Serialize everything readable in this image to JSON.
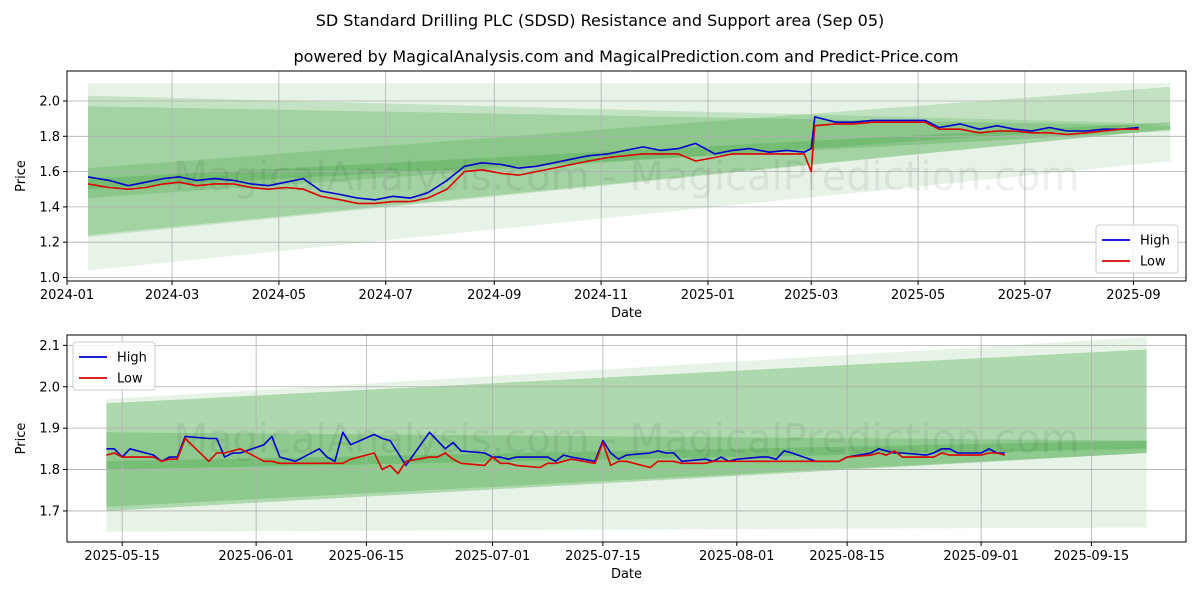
{
  "figure": {
    "title": "SD Standard Drilling PLC (SDSD) Resistance and Support area (Sep 05)",
    "subtitle": "powered by MagicalAnalysis.com and MagicalPrediction.com and Predict-Price.com",
    "watermark": "MagicalAnalysis.com - MagicalPrediction.com",
    "colors": {
      "high": "#0000cc",
      "low": "#dd0000",
      "band": "#2e9a2e",
      "grid": "#b0b0b0"
    }
  },
  "chart_data": [
    {
      "type": "line",
      "xlabel": "Date",
      "ylabel": "Price",
      "xlim": [
        "2024-01-01",
        "2025-10-01"
      ],
      "ylim": [
        0.98,
        2.17
      ],
      "xticks": [
        "2024-01",
        "2024-03",
        "2024-05",
        "2024-07",
        "2024-09",
        "2024-11",
        "2025-01",
        "2025-03",
        "2025-05",
        "2025-07",
        "2025-09"
      ],
      "yticks": [
        1.0,
        1.2,
        1.4,
        1.6,
        1.8,
        2.0
      ],
      "grid": true,
      "legend": "bottom-right",
      "series": [
        {
          "name": "High",
          "x": [
            "2024-01-13",
            "2024-01-25",
            "2024-02-05",
            "2024-02-15",
            "2024-02-25",
            "2024-03-05",
            "2024-03-15",
            "2024-03-25",
            "2024-04-05",
            "2024-04-15",
            "2024-04-25",
            "2024-05-05",
            "2024-05-15",
            "2024-05-25",
            "2024-06-05",
            "2024-06-15",
            "2024-06-25",
            "2024-07-05",
            "2024-07-15",
            "2024-07-25",
            "2024-08-05",
            "2024-08-15",
            "2024-08-25",
            "2024-09-05",
            "2024-09-15",
            "2024-09-25",
            "2024-10-05",
            "2024-10-15",
            "2024-10-25",
            "2024-11-05",
            "2024-11-15",
            "2024-11-25",
            "2024-12-05",
            "2024-12-15",
            "2024-12-25",
            "2025-01-05",
            "2025-01-15",
            "2025-01-25",
            "2025-02-05",
            "2025-02-15",
            "2025-02-25",
            "2025-03-01",
            "2025-03-03",
            "2025-03-15",
            "2025-03-25",
            "2025-04-05",
            "2025-04-15",
            "2025-04-25",
            "2025-05-05",
            "2025-05-13",
            "2025-05-25",
            "2025-06-05",
            "2025-06-15",
            "2025-06-25",
            "2025-07-05",
            "2025-07-15",
            "2025-07-25",
            "2025-08-05",
            "2025-08-15",
            "2025-08-25",
            "2025-09-04"
          ],
          "values": [
            1.57,
            1.55,
            1.52,
            1.54,
            1.56,
            1.57,
            1.55,
            1.56,
            1.55,
            1.53,
            1.52,
            1.54,
            1.56,
            1.49,
            1.47,
            1.45,
            1.44,
            1.46,
            1.45,
            1.48,
            1.55,
            1.63,
            1.65,
            1.64,
            1.62,
            1.63,
            1.65,
            1.67,
            1.69,
            1.7,
            1.72,
            1.74,
            1.72,
            1.73,
            1.76,
            1.7,
            1.72,
            1.73,
            1.71,
            1.72,
            1.71,
            1.73,
            1.91,
            1.88,
            1.88,
            1.89,
            1.89,
            1.89,
            1.89,
            1.85,
            1.87,
            1.84,
            1.86,
            1.84,
            1.83,
            1.85,
            1.83,
            1.83,
            1.84,
            1.84,
            1.85
          ]
        },
        {
          "name": "Low",
          "x": [
            "2024-01-13",
            "2024-01-25",
            "2024-02-05",
            "2024-02-15",
            "2024-02-25",
            "2024-03-05",
            "2024-03-15",
            "2024-03-25",
            "2024-04-05",
            "2024-04-15",
            "2024-04-25",
            "2024-05-05",
            "2024-05-15",
            "2024-05-25",
            "2024-06-05",
            "2024-06-15",
            "2024-06-25",
            "2024-07-05",
            "2024-07-15",
            "2024-07-25",
            "2024-08-05",
            "2024-08-15",
            "2024-08-25",
            "2024-09-05",
            "2024-09-15",
            "2024-09-25",
            "2024-10-05",
            "2024-10-15",
            "2024-10-25",
            "2024-11-05",
            "2024-11-15",
            "2024-11-25",
            "2024-12-05",
            "2024-12-15",
            "2024-12-25",
            "2025-01-05",
            "2025-01-15",
            "2025-01-25",
            "2025-02-05",
            "2025-02-15",
            "2025-02-25",
            "2025-03-01",
            "2025-03-03",
            "2025-03-15",
            "2025-03-25",
            "2025-04-05",
            "2025-04-15",
            "2025-04-25",
            "2025-05-05",
            "2025-05-13",
            "2025-05-25",
            "2025-06-05",
            "2025-06-15",
            "2025-06-25",
            "2025-07-05",
            "2025-07-15",
            "2025-07-25",
            "2025-08-05",
            "2025-08-15",
            "2025-08-25",
            "2025-09-04"
          ],
          "values": [
            1.53,
            1.51,
            1.5,
            1.51,
            1.53,
            1.54,
            1.52,
            1.53,
            1.53,
            1.51,
            1.5,
            1.51,
            1.5,
            1.46,
            1.44,
            1.42,
            1.42,
            1.43,
            1.43,
            1.45,
            1.5,
            1.6,
            1.61,
            1.59,
            1.58,
            1.6,
            1.62,
            1.64,
            1.66,
            1.68,
            1.69,
            1.7,
            1.7,
            1.7,
            1.66,
            1.68,
            1.7,
            1.7,
            1.7,
            1.7,
            1.7,
            1.6,
            1.86,
            1.87,
            1.87,
            1.88,
            1.88,
            1.88,
            1.88,
            1.84,
            1.84,
            1.82,
            1.83,
            1.83,
            1.82,
            1.82,
            1.81,
            1.82,
            1.83,
            1.84,
            1.84
          ]
        }
      ],
      "bands": [
        {
          "x": [
            "2024-01-13",
            "2025-09-22"
          ],
          "upper": [
            2.1,
            2.1
          ],
          "lower": [
            1.04,
            1.66
          ],
          "opacity": 0.12
        },
        {
          "x": [
            "2024-01-13",
            "2025-09-22"
          ],
          "upper": [
            2.03,
            1.87
          ],
          "lower": [
            1.23,
            1.84
          ],
          "opacity": 0.18
        },
        {
          "x": [
            "2024-01-13",
            "2025-09-22"
          ],
          "upper": [
            1.97,
            1.86
          ],
          "lower": [
            1.24,
            1.84
          ],
          "opacity": 0.22
        },
        {
          "x": [
            "2024-01-13",
            "2025-09-22"
          ],
          "upper": [
            1.62,
            2.08
          ],
          "lower": [
            1.45,
            1.87
          ],
          "opacity": 0.2
        },
        {
          "x": [
            "2024-01-13",
            "2025-09-22"
          ],
          "upper": [
            1.56,
            1.88
          ],
          "lower": [
            1.5,
            1.83
          ],
          "opacity": 0.25
        }
      ]
    },
    {
      "type": "line",
      "xlabel": "Date",
      "ylabel": "Price",
      "xlim": [
        "2025-05-08",
        "2025-09-27"
      ],
      "ylim": [
        1.625,
        2.125
      ],
      "xticks": [
        "2025-05-15",
        "2025-06-01",
        "2025-06-15",
        "2025-07-01",
        "2025-07-15",
        "2025-08-01",
        "2025-08-15",
        "2025-09-01",
        "2025-09-15"
      ],
      "yticks": [
        1.7,
        1.8,
        1.9,
        2.0,
        2.1
      ],
      "grid": true,
      "legend": "top-left",
      "series": [
        {
          "name": "High",
          "x": [
            "2025-05-13",
            "2025-05-14",
            "2025-05-15",
            "2025-05-16",
            "2025-05-19",
            "2025-05-20",
            "2025-05-21",
            "2025-05-22",
            "2025-05-23",
            "2025-05-26",
            "2025-05-27",
            "2025-05-28",
            "2025-05-29",
            "2025-05-30",
            "2025-06-02",
            "2025-06-03",
            "2025-06-04",
            "2025-06-05",
            "2025-06-06",
            "2025-06-09",
            "2025-06-10",
            "2025-06-11",
            "2025-06-12",
            "2025-06-13",
            "2025-06-16",
            "2025-06-17",
            "2025-06-18",
            "2025-06-19",
            "2025-06-20",
            "2025-06-23",
            "2025-06-24",
            "2025-06-25",
            "2025-06-26",
            "2025-06-27",
            "2025-06-30",
            "2025-07-01",
            "2025-07-02",
            "2025-07-03",
            "2025-07-04",
            "2025-07-07",
            "2025-07-08",
            "2025-07-09",
            "2025-07-10",
            "2025-07-11",
            "2025-07-14",
            "2025-07-15",
            "2025-07-16",
            "2025-07-17",
            "2025-07-18",
            "2025-07-21",
            "2025-07-22",
            "2025-07-23",
            "2025-07-24",
            "2025-07-25",
            "2025-07-28",
            "2025-07-29",
            "2025-07-30",
            "2025-07-31",
            "2025-08-01",
            "2025-08-04",
            "2025-08-05",
            "2025-08-06",
            "2025-08-07",
            "2025-08-08",
            "2025-08-11",
            "2025-08-12",
            "2025-08-13",
            "2025-08-14",
            "2025-08-15",
            "2025-08-18",
            "2025-08-19",
            "2025-08-20",
            "2025-08-21",
            "2025-08-22",
            "2025-08-25",
            "2025-08-26",
            "2025-08-27",
            "2025-08-28",
            "2025-08-29",
            "2025-09-01",
            "2025-09-02",
            "2025-09-03",
            "2025-09-04"
          ],
          "values": [
            1.85,
            1.85,
            1.83,
            1.85,
            1.835,
            1.82,
            1.83,
            1.83,
            1.88,
            1.875,
            1.875,
            1.83,
            1.84,
            1.84,
            1.86,
            1.88,
            1.83,
            1.825,
            1.82,
            1.85,
            1.83,
            1.82,
            1.89,
            1.86,
            1.885,
            1.875,
            1.87,
            1.84,
            1.81,
            1.89,
            1.87,
            1.85,
            1.865,
            1.845,
            1.84,
            1.83,
            1.83,
            1.825,
            1.83,
            1.83,
            1.83,
            1.82,
            1.835,
            1.83,
            1.82,
            1.87,
            1.84,
            1.825,
            1.835,
            1.84,
            1.845,
            1.84,
            1.84,
            1.82,
            1.825,
            1.82,
            1.83,
            1.82,
            1.825,
            1.83,
            1.83,
            1.825,
            1.845,
            1.84,
            1.82,
            1.82,
            1.82,
            1.82,
            1.83,
            1.84,
            1.85,
            1.845,
            1.84,
            1.84,
            1.835,
            1.84,
            1.85,
            1.85,
            1.84,
            1.84,
            1.85,
            1.84,
            1.84
          ]
        },
        {
          "name": "Low",
          "x": [
            "2025-05-13",
            "2025-05-14",
            "2025-05-15",
            "2025-05-16",
            "2025-05-19",
            "2025-05-20",
            "2025-05-21",
            "2025-05-22",
            "2025-05-23",
            "2025-05-26",
            "2025-05-27",
            "2025-05-28",
            "2025-05-29",
            "2025-05-30",
            "2025-06-02",
            "2025-06-03",
            "2025-06-04",
            "2025-06-05",
            "2025-06-06",
            "2025-06-09",
            "2025-06-10",
            "2025-06-11",
            "2025-06-12",
            "2025-06-13",
            "2025-06-16",
            "2025-06-17",
            "2025-06-18",
            "2025-06-19",
            "2025-06-20",
            "2025-06-23",
            "2025-06-24",
            "2025-06-25",
            "2025-06-26",
            "2025-06-27",
            "2025-06-30",
            "2025-07-01",
            "2025-07-02",
            "2025-07-03",
            "2025-07-04",
            "2025-07-07",
            "2025-07-08",
            "2025-07-09",
            "2025-07-10",
            "2025-07-11",
            "2025-07-14",
            "2025-07-15",
            "2025-07-16",
            "2025-07-17",
            "2025-07-18",
            "2025-07-21",
            "2025-07-22",
            "2025-07-23",
            "2025-07-24",
            "2025-07-25",
            "2025-07-28",
            "2025-07-29",
            "2025-07-30",
            "2025-07-31",
            "2025-08-01",
            "2025-08-04",
            "2025-08-05",
            "2025-08-06",
            "2025-08-07",
            "2025-08-08",
            "2025-08-11",
            "2025-08-12",
            "2025-08-13",
            "2025-08-14",
            "2025-08-15",
            "2025-08-18",
            "2025-08-19",
            "2025-08-20",
            "2025-08-21",
            "2025-08-22",
            "2025-08-25",
            "2025-08-26",
            "2025-08-27",
            "2025-08-28",
            "2025-08-29",
            "2025-09-01",
            "2025-09-02",
            "2025-09-03",
            "2025-09-04"
          ],
          "values": [
            1.835,
            1.84,
            1.83,
            1.83,
            1.83,
            1.82,
            1.825,
            1.825,
            1.875,
            1.82,
            1.84,
            1.84,
            1.845,
            1.85,
            1.82,
            1.82,
            1.815,
            1.815,
            1.815,
            1.815,
            1.815,
            1.815,
            1.815,
            1.825,
            1.84,
            1.8,
            1.81,
            1.79,
            1.82,
            1.83,
            1.83,
            1.84,
            1.825,
            1.815,
            1.81,
            1.83,
            1.815,
            1.815,
            1.81,
            1.805,
            1.815,
            1.815,
            1.82,
            1.825,
            1.815,
            1.865,
            1.81,
            1.82,
            1.82,
            1.805,
            1.82,
            1.82,
            1.82,
            1.815,
            1.815,
            1.82,
            1.82,
            1.82,
            1.82,
            1.82,
            1.82,
            1.82,
            1.82,
            1.82,
            1.82,
            1.82,
            1.82,
            1.82,
            1.83,
            1.835,
            1.84,
            1.835,
            1.845,
            1.83,
            1.83,
            1.83,
            1.84,
            1.835,
            1.835,
            1.835,
            1.84,
            1.84,
            1.835
          ]
        }
      ],
      "bands": [
        {
          "x": [
            "2025-05-13",
            "2025-09-22"
          ],
          "upper": [
            1.97,
            2.12
          ],
          "lower": [
            1.65,
            1.66
          ],
          "opacity": 0.12
        },
        {
          "x": [
            "2025-05-13",
            "2025-09-22"
          ],
          "upper": [
            1.96,
            2.09
          ],
          "lower": [
            1.7,
            1.84
          ],
          "opacity": 0.3
        },
        {
          "x": [
            "2025-05-13",
            "2025-09-22"
          ],
          "upper": [
            1.89,
            1.87
          ],
          "lower": [
            1.8,
            1.85
          ],
          "opacity": 0.25
        },
        {
          "x": [
            "2025-05-13",
            "2025-09-22"
          ],
          "upper": [
            1.82,
            1.87
          ],
          "lower": [
            1.71,
            1.84
          ],
          "opacity": 0.25
        }
      ]
    }
  ]
}
